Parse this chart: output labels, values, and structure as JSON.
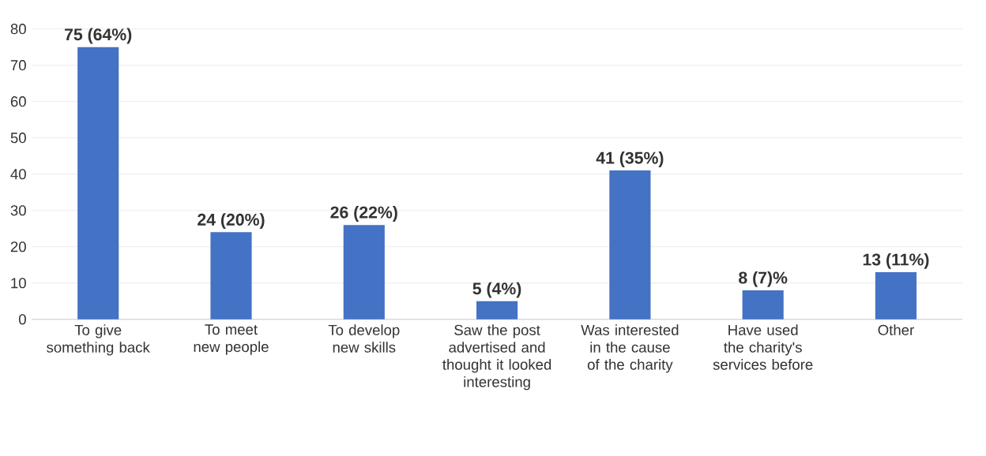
{
  "chart_data": {
    "type": "bar",
    "categories": [
      "To give something back",
      "To meet new people",
      "To develop new skills",
      "Saw the post advertised and thought it looked interesting",
      "Was interested in the cause of the charity",
      "Have used the charity's services before",
      "Other"
    ],
    "values": [
      75,
      24,
      26,
      5,
      41,
      8,
      13
    ],
    "value_labels": [
      "75 (64%)",
      "24 (20%)",
      "26 (22%)",
      "5 (4%)",
      "41 (35%)",
      "8 (7)%",
      "13 (11%)"
    ],
    "color": "#4472c4",
    "ylim": [
      0,
      80
    ],
    "yticks": [
      0,
      10,
      20,
      30,
      40,
      50,
      60,
      70,
      80
    ],
    "grid": "y"
  }
}
